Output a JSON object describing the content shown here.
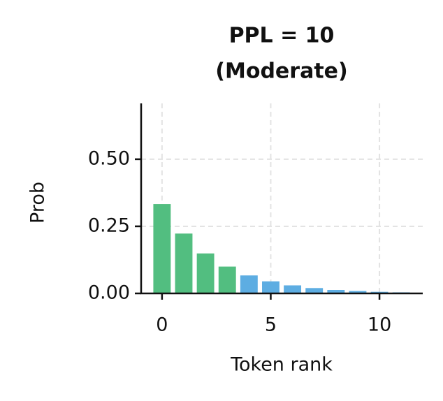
{
  "chart_data": {
    "type": "bar",
    "title": "PPL = 10",
    "subtitle": "(Moderate)",
    "x_label": "Token rank",
    "y_label": "Prob",
    "x": [
      0,
      1,
      2,
      3,
      4,
      5,
      6,
      7,
      8,
      9,
      10,
      11
    ],
    "values": [
      0.333,
      0.223,
      0.149,
      0.1,
      0.067,
      0.045,
      0.03,
      0.02,
      0.013,
      0.009,
      0.006,
      0.004
    ],
    "colors": [
      "#52be80",
      "#52be80",
      "#52be80",
      "#52be80",
      "#5dade2",
      "#5dade2",
      "#5dade2",
      "#5dade2",
      "#5dade2",
      "#5dade2",
      "#5dade2",
      "#5dade2"
    ],
    "xlim": [
      -0.96,
      11.99
    ],
    "ylim": [
      0,
      0.708
    ],
    "xticks": [
      0,
      5,
      10
    ],
    "yticks": [
      {
        "value": 0,
        "label": "0.00"
      },
      {
        "value": 0.25,
        "label": "0.25"
      },
      {
        "value": 0.5,
        "label": "0.50"
      }
    ],
    "grid": true
  }
}
